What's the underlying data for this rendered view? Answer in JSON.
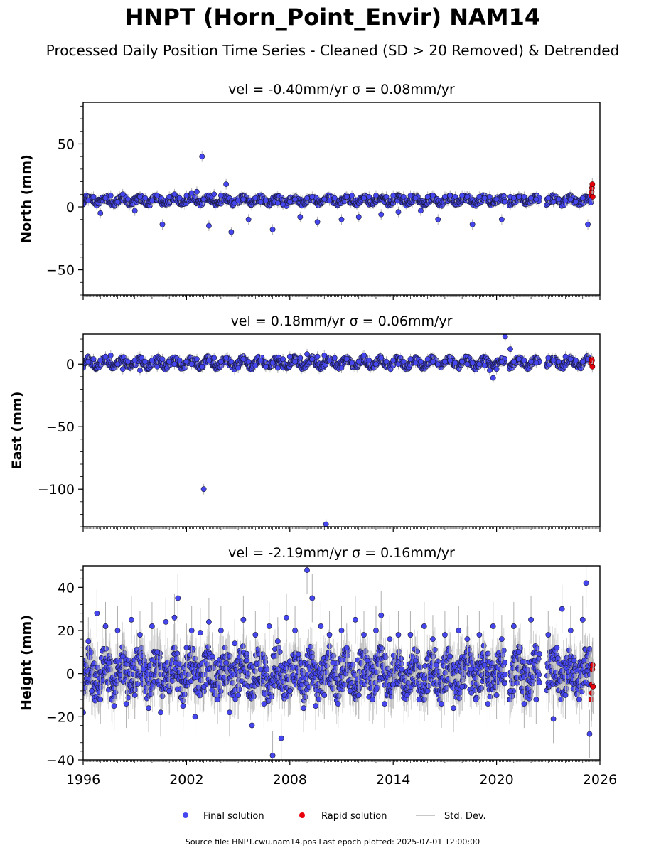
{
  "title": "HNPT (Horn_Point_Envir) NAM14",
  "subtitle": "Processed Daily Position Time Series - Cleaned (SD > 20 Removed) & Detrended",
  "footer": "Source file: HNPT.cwu.nam14.pos  Last epoch plotted: 2025-07-01 12:00:00",
  "legend": {
    "final": "Final solution",
    "rapid": "Rapid solution",
    "sd": "Std. Dev."
  },
  "colors": {
    "final": "#4646ee",
    "rapid": "#e8000b",
    "sd": "#b0b0b0"
  },
  "chart_data": [
    {
      "type": "scatter",
      "title": "vel = -0.40mm/yr   σ = 0.08mm/yr",
      "ylabel": "North (mm)",
      "xlabel": "",
      "xlim": [
        1996,
        2026
      ],
      "ylim": [
        -70,
        83
      ],
      "yticks": [
        "−50",
        "0",
        "50"
      ],
      "ytick_values": [
        -50,
        0,
        50
      ],
      "grid": false,
      "series": [
        {
          "name": "Final solution",
          "x": [
            1996.0,
            1996.3,
            1996.6,
            1997.0,
            1997.3,
            1997.6,
            1998.0,
            1998.3,
            1998.6,
            1999.0,
            1999.3,
            1999.6,
            2000.0,
            2000.3,
            2000.6,
            2001.0,
            2001.3,
            2001.6,
            2002.0,
            2002.3,
            2002.6,
            2002.9,
            2003.0,
            2003.3,
            2003.6,
            2004.0,
            2004.3,
            2004.6,
            2004.8,
            2005.0,
            2005.3,
            2005.6,
            2006.0,
            2006.3,
            2006.6,
            2007.0,
            2007.3,
            2007.6,
            2008.0,
            2008.3,
            2008.6,
            2009.0,
            2009.3,
            2009.6,
            2010.0,
            2010.3,
            2010.6,
            2011.0,
            2011.3,
            2011.6,
            2012.0,
            2012.3,
            2012.6,
            2013.0,
            2013.3,
            2013.6,
            2014.0,
            2014.3,
            2014.6,
            2015.0,
            2015.3,
            2015.6,
            2016.0,
            2016.3,
            2016.6,
            2017.0,
            2017.3,
            2017.6,
            2018.0,
            2018.3,
            2018.6,
            2019.0,
            2019.3,
            2019.6,
            2020.0,
            2020.3,
            2020.8,
            2021.0,
            2021.3,
            2021.6,
            2022.0,
            2022.3,
            2023.0,
            2023.3,
            2023.6,
            2024.0,
            2024.3,
            2024.6,
            2025.0,
            2025.3
          ],
          "y": [
            2,
            5,
            8,
            -5,
            7,
            9,
            4,
            10,
            6,
            -3,
            8,
            7,
            5,
            9,
            -14,
            8,
            10,
            7,
            9,
            11,
            12,
            40,
            6,
            -15,
            10,
            9,
            18,
            -20,
            3,
            5,
            6,
            -10,
            7,
            4,
            5,
            -18,
            3,
            2,
            4,
            6,
            -8,
            7,
            8,
            -12,
            6,
            5,
            7,
            -10,
            8,
            9,
            -8,
            7,
            8,
            9,
            -6,
            8,
            9,
            -4,
            8,
            9,
            7,
            -3,
            8,
            9,
            -10,
            8,
            9,
            8,
            9,
            8,
            -14,
            8,
            7,
            8,
            6,
            -10,
            8,
            7,
            8,
            8,
            7,
            6,
            7,
            4,
            6,
            5,
            6,
            4,
            7,
            -14
          ]
        },
        {
          "name": "Rapid solution",
          "x": [
            2025.5,
            2025.52,
            2025.54,
            2025.56,
            2025.58
          ],
          "y": [
            9,
            12,
            15,
            18,
            8
          ]
        }
      ]
    },
    {
      "type": "scatter",
      "title": "vel = 0.18mm/yr   σ = 0.06mm/yr",
      "ylabel": "East (mm)",
      "xlabel": "",
      "xlim": [
        1996,
        2026
      ],
      "ylim": [
        -130,
        24
      ],
      "yticks": [
        "−100",
        "−50",
        "0"
      ],
      "ytick_values": [
        -100,
        -50,
        0
      ],
      "grid": false,
      "series": [
        {
          "name": "Final solution",
          "x": [
            1996.0,
            1996.3,
            1996.6,
            1997.0,
            1997.3,
            1997.6,
            1998.0,
            1998.3,
            1998.6,
            1999.0,
            1999.3,
            1999.6,
            2000.0,
            2000.3,
            2000.6,
            2001.0,
            2001.3,
            2001.6,
            2002.0,
            2002.3,
            2002.6,
            2002.9,
            2003.0,
            2003.3,
            2003.6,
            2004.0,
            2004.3,
            2004.6,
            2005.0,
            2005.3,
            2005.6,
            2006.0,
            2006.3,
            2006.6,
            2007.0,
            2007.3,
            2007.6,
            2008.0,
            2008.3,
            2008.6,
            2009.0,
            2009.3,
            2009.6,
            2010.0,
            2010.1,
            2010.3,
            2010.6,
            2011.0,
            2011.3,
            2011.6,
            2012.0,
            2012.3,
            2012.6,
            2013.0,
            2013.3,
            2013.6,
            2014.0,
            2014.3,
            2014.6,
            2015.0,
            2015.3,
            2015.6,
            2016.0,
            2016.3,
            2016.6,
            2017.0,
            2017.3,
            2017.6,
            2018.0,
            2018.3,
            2018.6,
            2019.0,
            2019.3,
            2019.6,
            2019.8,
            2020.0,
            2020.3,
            2020.5,
            2020.8,
            2021.0,
            2021.3,
            2021.6,
            2022.0,
            2022.3,
            2023.0,
            2023.3,
            2023.6,
            2024.0,
            2024.3,
            2024.6,
            2025.0,
            2025.3
          ],
          "y": [
            -3,
            2,
            4,
            3,
            6,
            7,
            0,
            -4,
            2,
            3,
            -5,
            2,
            3,
            -2,
            4,
            2,
            0,
            3,
            2,
            0,
            4,
            -2,
            -100,
            3,
            5,
            2,
            5,
            2,
            -3,
            4,
            2,
            -1,
            3,
            -2,
            1,
            -3,
            4,
            6,
            2,
            5,
            8,
            4,
            6,
            7,
            -128,
            3,
            5,
            -3,
            4,
            1,
            2,
            7,
            3,
            0,
            5,
            2,
            3,
            0,
            2,
            4,
            1,
            2,
            4,
            2,
            0,
            2,
            3,
            1,
            2,
            0,
            1,
            0,
            -1,
            -5,
            -11,
            -4,
            2,
            22,
            12,
            2,
            4,
            3,
            2,
            1,
            5,
            3,
            2,
            6,
            4,
            3,
            2,
            4
          ]
        },
        {
          "name": "Rapid solution",
          "x": [
            2025.5,
            2025.52,
            2025.54,
            2025.56
          ],
          "y": [
            1,
            4,
            3,
            -2
          ]
        }
      ]
    },
    {
      "type": "scatter",
      "title": "vel = -2.19mm/yr   σ = 0.16mm/yr",
      "ylabel": "Height (mm)",
      "xlabel": "",
      "xlim": [
        1996,
        2026
      ],
      "ylim": [
        -40,
        50
      ],
      "yticks": [
        "−40",
        "−20",
        "0",
        "20",
        "40"
      ],
      "ytick_values": [
        -40,
        -20,
        0,
        20,
        40
      ],
      "xticks": [
        "1996",
        "2002",
        "2008",
        "2014",
        "2020",
        "2026"
      ],
      "xtick_values": [
        1996,
        2002,
        2008,
        2014,
        2020,
        2026
      ],
      "grid": false,
      "series": [
        {
          "name": "Final solution",
          "x": [
            1996.0,
            1996.3,
            1996.5,
            1996.8,
            1997.0,
            1997.3,
            1997.5,
            1997.8,
            1998.0,
            1998.3,
            1998.5,
            1998.8,
            1999.0,
            1999.3,
            1999.5,
            1999.8,
            2000.0,
            2000.3,
            2000.5,
            2000.8,
            2001.0,
            2001.3,
            2001.5,
            2001.8,
            2002.0,
            2002.3,
            2002.5,
            2002.8,
            2003.0,
            2003.3,
            2003.5,
            2003.8,
            2004.0,
            2004.3,
            2004.5,
            2004.8,
            2005.0,
            2005.3,
            2005.5,
            2005.8,
            2006.0,
            2006.3,
            2006.5,
            2006.8,
            2007.0,
            2007.3,
            2007.5,
            2007.8,
            2008.0,
            2008.3,
            2008.5,
            2008.8,
            2009.0,
            2009.3,
            2009.5,
            2009.8,
            2010.0,
            2010.3,
            2010.5,
            2010.8,
            2011.0,
            2011.3,
            2011.5,
            2011.8,
            2012.0,
            2012.3,
            2012.5,
            2012.8,
            2013.0,
            2013.3,
            2013.5,
            2013.8,
            2014.0,
            2014.3,
            2014.5,
            2014.8,
            2015.0,
            2015.3,
            2015.5,
            2015.8,
            2016.0,
            2016.3,
            2016.5,
            2016.8,
            2017.0,
            2017.3,
            2017.5,
            2017.8,
            2018.0,
            2018.3,
            2018.5,
            2018.8,
            2019.0,
            2019.3,
            2019.5,
            2019.8,
            2020.0,
            2020.3,
            2020.8,
            2021.0,
            2021.3,
            2021.6,
            2022.0,
            2022.3,
            2023.0,
            2023.3,
            2023.5,
            2023.8,
            2024.0,
            2024.3,
            2024.5,
            2024.8,
            2025.0,
            2025.2,
            2025.4
          ],
          "y": [
            -18,
            15,
            -8,
            28,
            -12,
            22,
            5,
            -15,
            20,
            8,
            -14,
            25,
            -10,
            18,
            2,
            -16,
            22,
            10,
            -18,
            24,
            -8,
            26,
            35,
            -15,
            12,
            20,
            -20,
            19,
            -6,
            24,
            8,
            -12,
            20,
            5,
            -18,
            14,
            -10,
            25,
            6,
            -24,
            18,
            2,
            -14,
            22,
            -38,
            15,
            -30,
            26,
            -8,
            20,
            9,
            -16,
            48,
            35,
            -15,
            22,
            -10,
            18,
            5,
            -14,
            20,
            12,
            -8,
            25,
            -10,
            18,
            6,
            -12,
            20,
            27,
            -14,
            16,
            -5,
            18,
            2,
            -10,
            18,
            6,
            -12,
            22,
            -8,
            16,
            4,
            -14,
            18,
            8,
            -16,
            20,
            -6,
            16,
            2,
            -12,
            18,
            4,
            -14,
            22,
            -10,
            16,
            -8,
            22,
            10,
            -14,
            25,
            -12,
            18,
            -21,
            12,
            30,
            -10,
            20,
            6,
            -12,
            25,
            42,
            -28
          ]
        },
        {
          "name": "Rapid solution",
          "x": [
            2025.5,
            2025.52,
            2025.54,
            2025.56,
            2025.58,
            2025.6
          ],
          "y": [
            -12,
            -9,
            -5,
            2,
            4,
            -6
          ]
        }
      ]
    }
  ]
}
